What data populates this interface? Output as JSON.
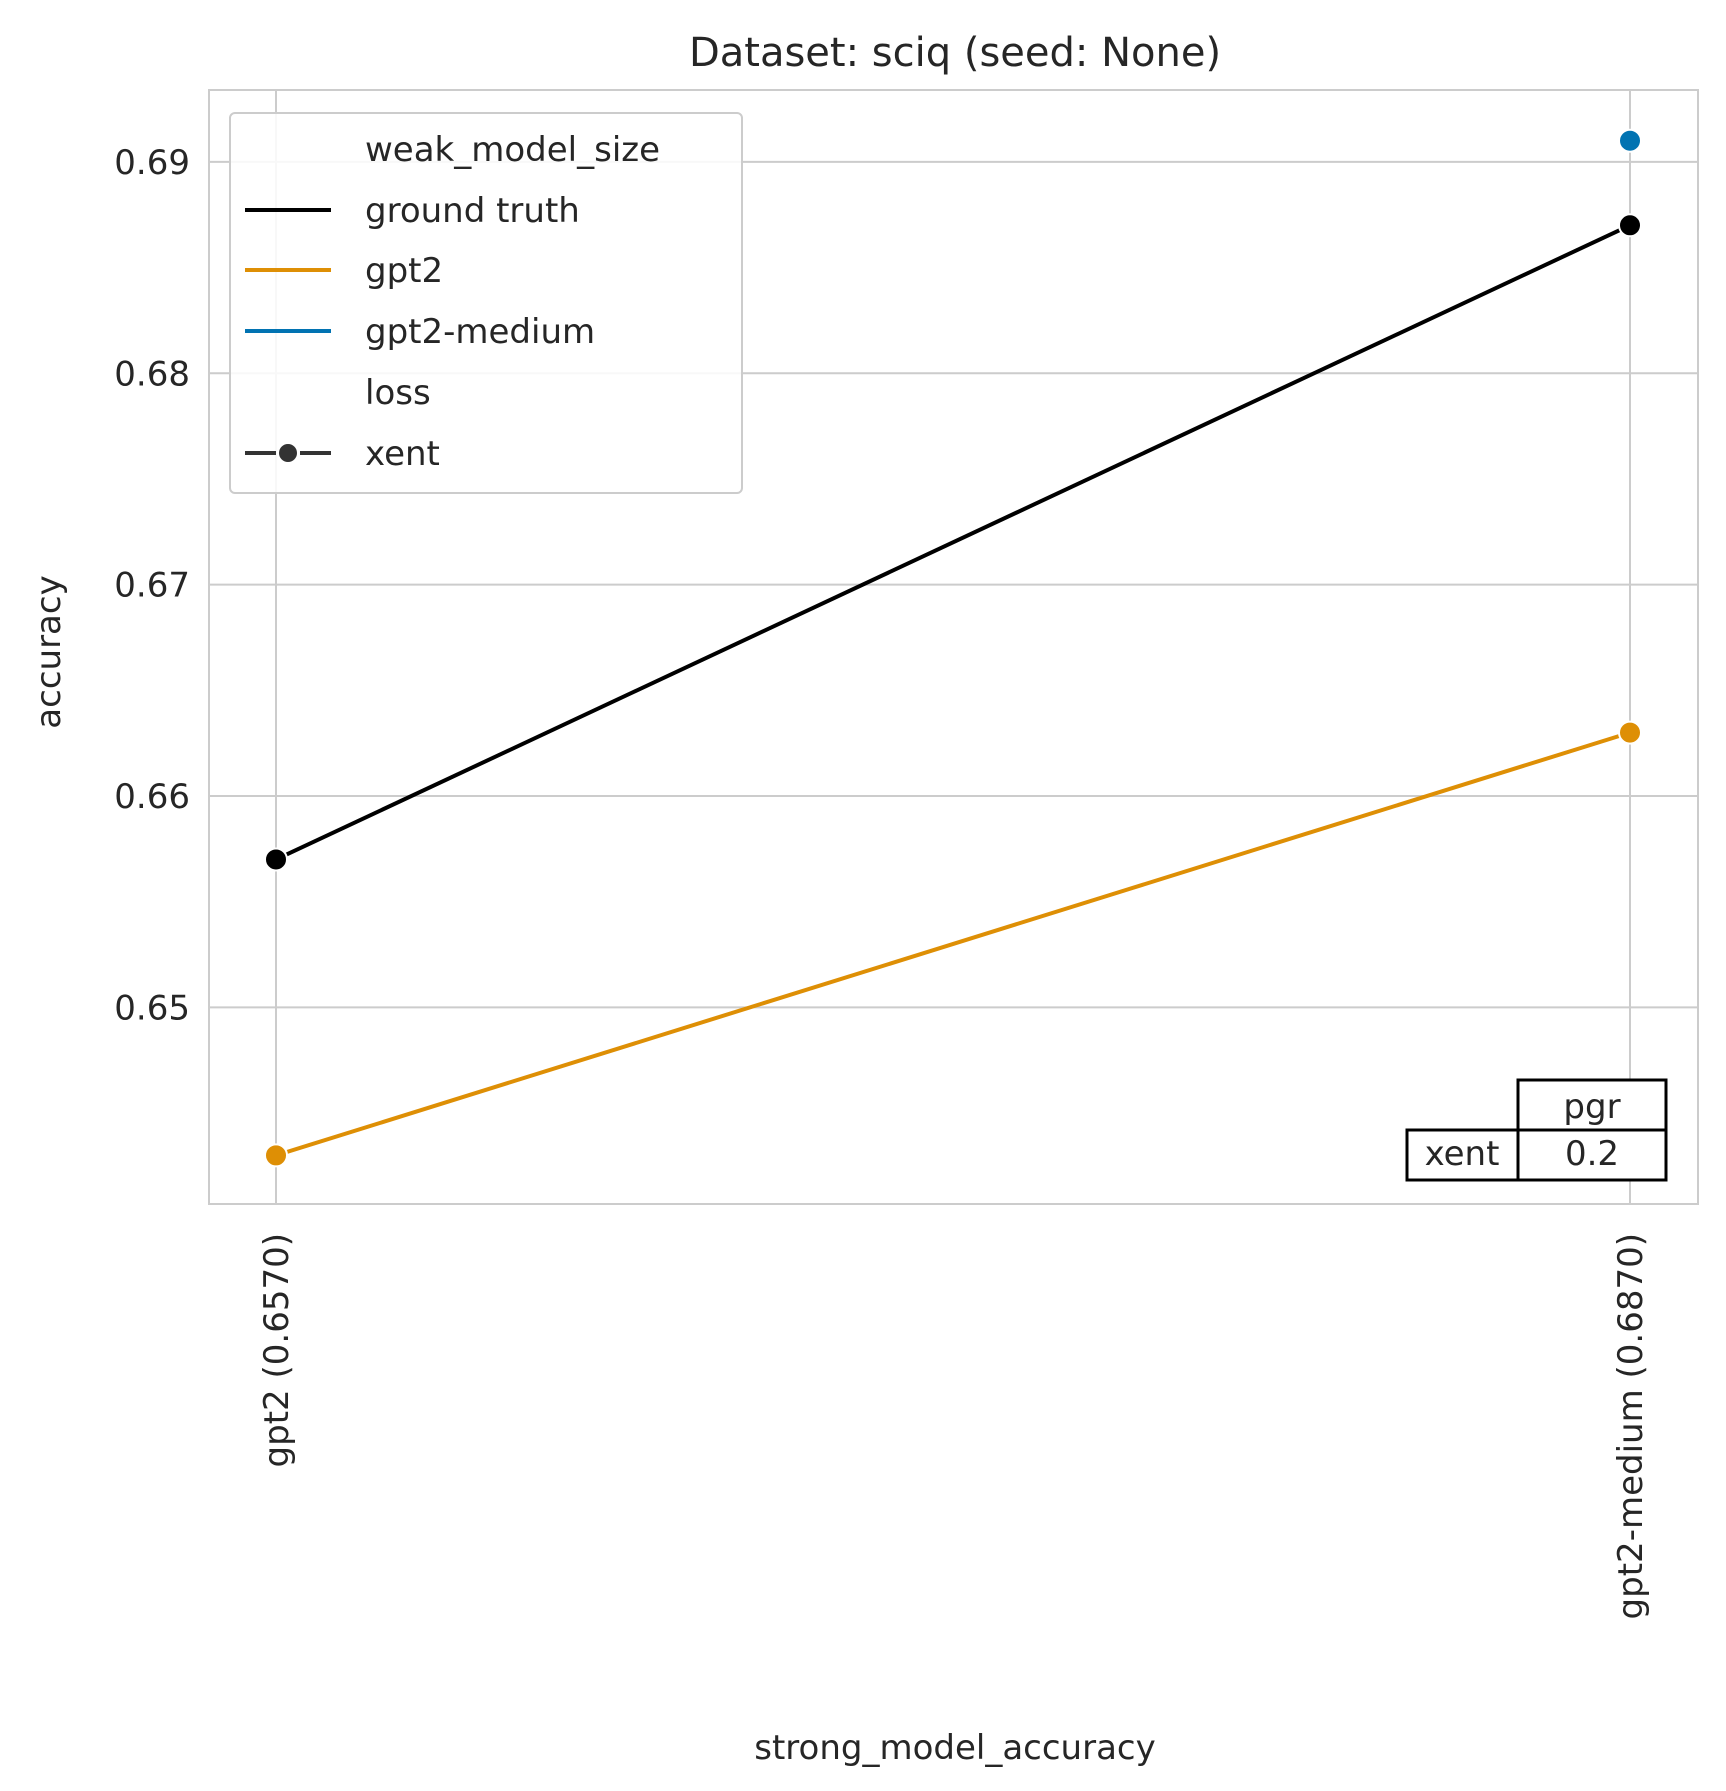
{
  "chart_data": {
    "type": "line",
    "title": "Dataset: sciq (seed: None)",
    "xlabel": "strong_model_accuracy",
    "ylabel": "accuracy",
    "categories": [
      "gpt2 (0.6570)",
      "gpt2-medium (0.6870)"
    ],
    "ylim": [
      0.6407,
      0.6934
    ],
    "yticks": [
      0.65,
      0.66,
      0.67,
      0.68,
      0.69
    ],
    "ytick_labels": [
      "0.65",
      "0.66",
      "0.67",
      "0.68",
      "0.69"
    ],
    "grid": true,
    "legend_position": "top-left",
    "legend": {
      "hue_title": "weak_model_size",
      "style_title": "loss",
      "style_entry": "xent",
      "style_color": "#333333"
    },
    "series": [
      {
        "name": "ground truth",
        "color": "#000000",
        "values": [
          0.657,
          0.687
        ]
      },
      {
        "name": "gpt2",
        "color": "#de8f05",
        "values": [
          0.643,
          0.663
        ]
      },
      {
        "name": "gpt2-medium",
        "color": "#0173b2",
        "values": [
          null,
          0.691
        ]
      }
    ],
    "table": {
      "col_header": "pgr",
      "row_label": "xent",
      "value": "0.2"
    }
  }
}
